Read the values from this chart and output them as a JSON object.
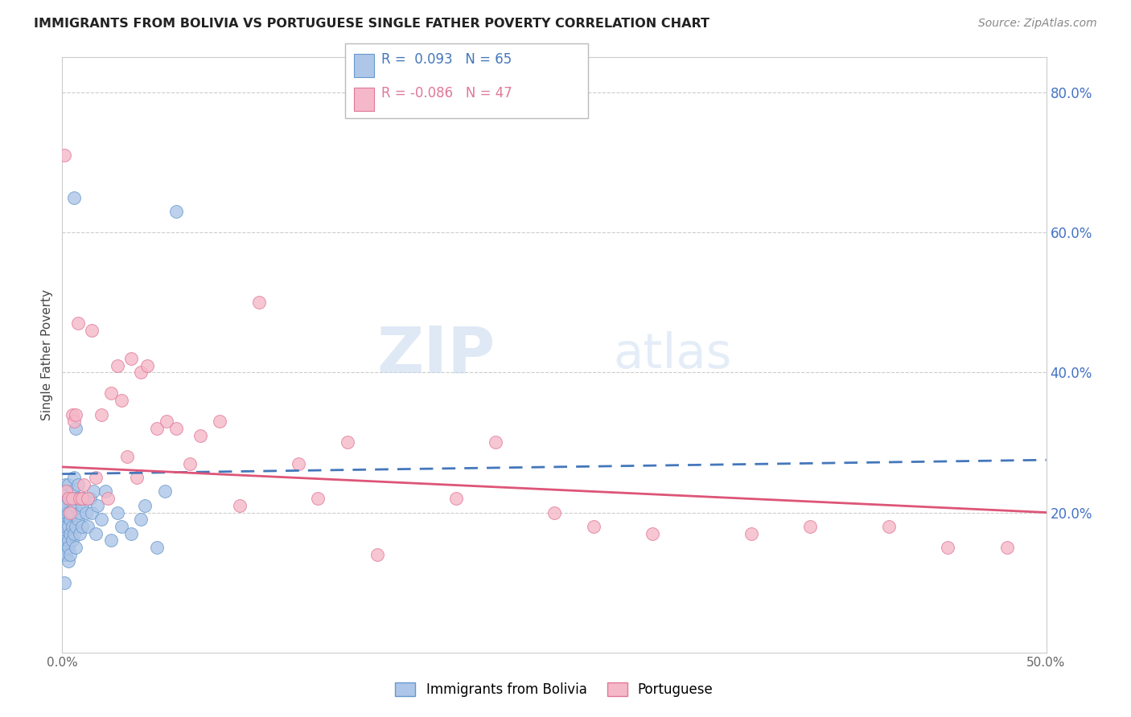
{
  "title": "IMMIGRANTS FROM BOLIVIA VS PORTUGUESE SINGLE FATHER POVERTY CORRELATION CHART",
  "source": "Source: ZipAtlas.com",
  "ylabel": "Single Father Poverty",
  "xmin": 0.0,
  "xmax": 0.5,
  "ymin": 0.0,
  "ymax": 0.85,
  "bolivia_color": "#aec6e8",
  "portuguese_color": "#f5b8c8",
  "bolivia_edge_color": "#6699cc",
  "portuguese_edge_color": "#e07898",
  "bolivia_R": 0.093,
  "bolivia_N": 65,
  "portuguese_R": -0.086,
  "portuguese_N": 47,
  "bolivia_line_color": "#4477bb",
  "portuguese_line_color": "#dd5577",
  "watermark_zip": "ZIP",
  "watermark_atlas": "atlas",
  "legend_label_1": "Immigrants from Bolivia",
  "legend_label_2": "Portuguese",
  "bolivia_x": [
    0.0008,
    0.0009,
    0.001,
    0.001,
    0.001,
    0.001,
    0.0012,
    0.0013,
    0.0015,
    0.0015,
    0.002,
    0.002,
    0.002,
    0.002,
    0.002,
    0.002,
    0.002,
    0.003,
    0.003,
    0.003,
    0.003,
    0.003,
    0.003,
    0.003,
    0.004,
    0.004,
    0.004,
    0.004,
    0.005,
    0.005,
    0.005,
    0.005,
    0.006,
    0.006,
    0.006,
    0.007,
    0.007,
    0.007,
    0.008,
    0.008,
    0.009,
    0.009,
    0.01,
    0.01,
    0.011,
    0.012,
    0.013,
    0.014,
    0.015,
    0.016,
    0.017,
    0.018,
    0.02,
    0.022,
    0.025,
    0.028,
    0.03,
    0.035,
    0.04,
    0.042,
    0.048,
    0.052,
    0.058,
    0.006,
    0.007
  ],
  "bolivia_y": [
    0.14,
    0.1,
    0.17,
    0.19,
    0.21,
    0.22,
    0.18,
    0.15,
    0.2,
    0.24,
    0.14,
    0.17,
    0.2,
    0.21,
    0.23,
    0.18,
    0.16,
    0.13,
    0.16,
    0.18,
    0.2,
    0.22,
    0.24,
    0.15,
    0.14,
    0.19,
    0.22,
    0.17,
    0.16,
    0.2,
    0.23,
    0.18,
    0.17,
    0.21,
    0.25,
    0.18,
    0.22,
    0.15,
    0.19,
    0.24,
    0.2,
    0.17,
    0.21,
    0.18,
    0.22,
    0.2,
    0.18,
    0.22,
    0.2,
    0.23,
    0.17,
    0.21,
    0.19,
    0.23,
    0.16,
    0.2,
    0.18,
    0.17,
    0.19,
    0.21,
    0.15,
    0.23,
    0.63,
    0.65,
    0.32
  ],
  "portuguese_x": [
    0.001,
    0.002,
    0.003,
    0.004,
    0.005,
    0.005,
    0.006,
    0.007,
    0.008,
    0.009,
    0.01,
    0.011,
    0.013,
    0.015,
    0.017,
    0.02,
    0.023,
    0.025,
    0.028,
    0.03,
    0.033,
    0.035,
    0.038,
    0.04,
    0.043,
    0.048,
    0.053,
    0.058,
    0.065,
    0.07,
    0.08,
    0.09,
    0.1,
    0.12,
    0.13,
    0.145,
    0.16,
    0.2,
    0.22,
    0.25,
    0.27,
    0.3,
    0.35,
    0.38,
    0.42,
    0.45,
    0.48
  ],
  "portuguese_y": [
    0.71,
    0.23,
    0.22,
    0.2,
    0.34,
    0.22,
    0.33,
    0.34,
    0.47,
    0.22,
    0.22,
    0.24,
    0.22,
    0.46,
    0.25,
    0.34,
    0.22,
    0.37,
    0.41,
    0.36,
    0.28,
    0.42,
    0.25,
    0.4,
    0.41,
    0.32,
    0.33,
    0.32,
    0.27,
    0.31,
    0.33,
    0.21,
    0.5,
    0.27,
    0.22,
    0.3,
    0.14,
    0.22,
    0.3,
    0.2,
    0.18,
    0.17,
    0.17,
    0.18,
    0.18,
    0.15,
    0.15
  ]
}
